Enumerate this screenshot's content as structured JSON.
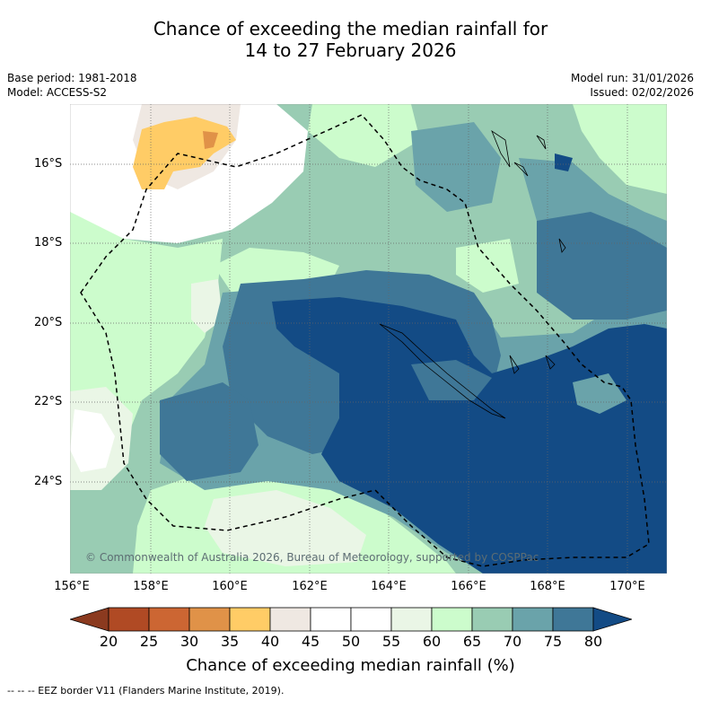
{
  "title_line1": "Chance of exceeding the median rainfall for",
  "title_line2": "14 to 27 February 2026",
  "base_period": "Base period: 1981-2018",
  "model": "Model: ACCESS-S2",
  "model_run": "Model run: 31/01/2026",
  "issued": "Issued: 02/02/2026",
  "lat_labels": [
    "16°S",
    "18°S",
    "20°S",
    "22°S",
    "24°S"
  ],
  "lon_labels": [
    "156°E",
    "158°E",
    "160°E",
    "162°E",
    "164°E",
    "166°E",
    "168°E",
    "170°E"
  ],
  "copyright": "© Commonwealth of Australia 2026, Bureau of Meteorology, supported by COSPPac",
  "colorbar": {
    "ticks": [
      "20",
      "25",
      "30",
      "35",
      "40",
      "45",
      "50",
      "55",
      "60",
      "65",
      "70",
      "75",
      "80"
    ],
    "colors": [
      "#8b3a1f",
      "#b04a24",
      "#cc6633",
      "#e09248",
      "#ffcc66",
      "#efe8e2",
      "#ffffff",
      "#ffffff",
      "#eaf6e6",
      "#ccfccc",
      "#99ccb3",
      "#6aa3aa",
      "#3f7797",
      "#134b85"
    ],
    "label": "Chance of exceeding median rainfall (%)"
  },
  "legend_eez": "-- -- -- EEZ border V11 (Flanders Marine Institute, 2019)."
}
